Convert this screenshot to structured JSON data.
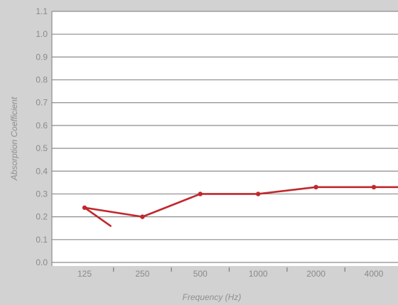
{
  "chart_data": {
    "type": "line",
    "title": "",
    "xlabel": "Frequency (Hz)",
    "ylabel": "Absorption Coefficient",
    "categories": [
      "125",
      "250",
      "500",
      "1000",
      "2000",
      "4000"
    ],
    "series": [
      {
        "color": "#c0282d",
        "x_start": 0.45,
        "start_value": 0.16,
        "values": [
          0.24,
          0.2,
          0.3,
          0.3,
          0.33,
          0.33
        ],
        "x_end": 6.5,
        "end_value": 0.33
      }
    ],
    "ylim": [
      0.0,
      1.1
    ],
    "yticks": [
      "0.0",
      "0.1",
      "0.2",
      "0.3",
      "0.4",
      "0.5",
      "0.6",
      "0.7",
      "0.8",
      "0.9",
      "1.0",
      "1.1"
    ],
    "grid": true,
    "legend": "none",
    "colors": {
      "background": "#d2d2d2",
      "plot_background": "#ffffff",
      "gridline": "#8c8c8c",
      "series": "#c0282d",
      "text": "#8a8a8a"
    }
  }
}
